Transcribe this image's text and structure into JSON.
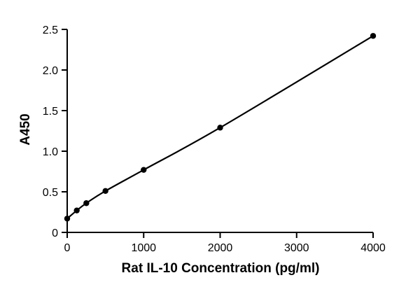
{
  "chart_data": {
    "type": "line",
    "title": "",
    "xlabel": "Rat IL-10 Concentration (pg/ml)",
    "ylabel": "A450",
    "xlim": [
      0,
      4000
    ],
    "ylim": [
      0,
      2.5
    ],
    "x_ticks": [
      "0",
      "1000",
      "2000",
      "3000",
      "4000"
    ],
    "y_ticks": [
      "0",
      "0.5",
      "1.0",
      "1.5",
      "2.0",
      "2.5"
    ],
    "grid": false,
    "legend": "none",
    "series": [
      {
        "x": [
          0,
          125,
          250,
          500,
          1000,
          2000,
          4000
        ],
        "y": [
          0.17,
          0.27,
          0.36,
          0.51,
          0.77,
          1.29,
          2.42
        ],
        "color": "#000000",
        "marker": "circle",
        "line": "smooth"
      }
    ]
  }
}
